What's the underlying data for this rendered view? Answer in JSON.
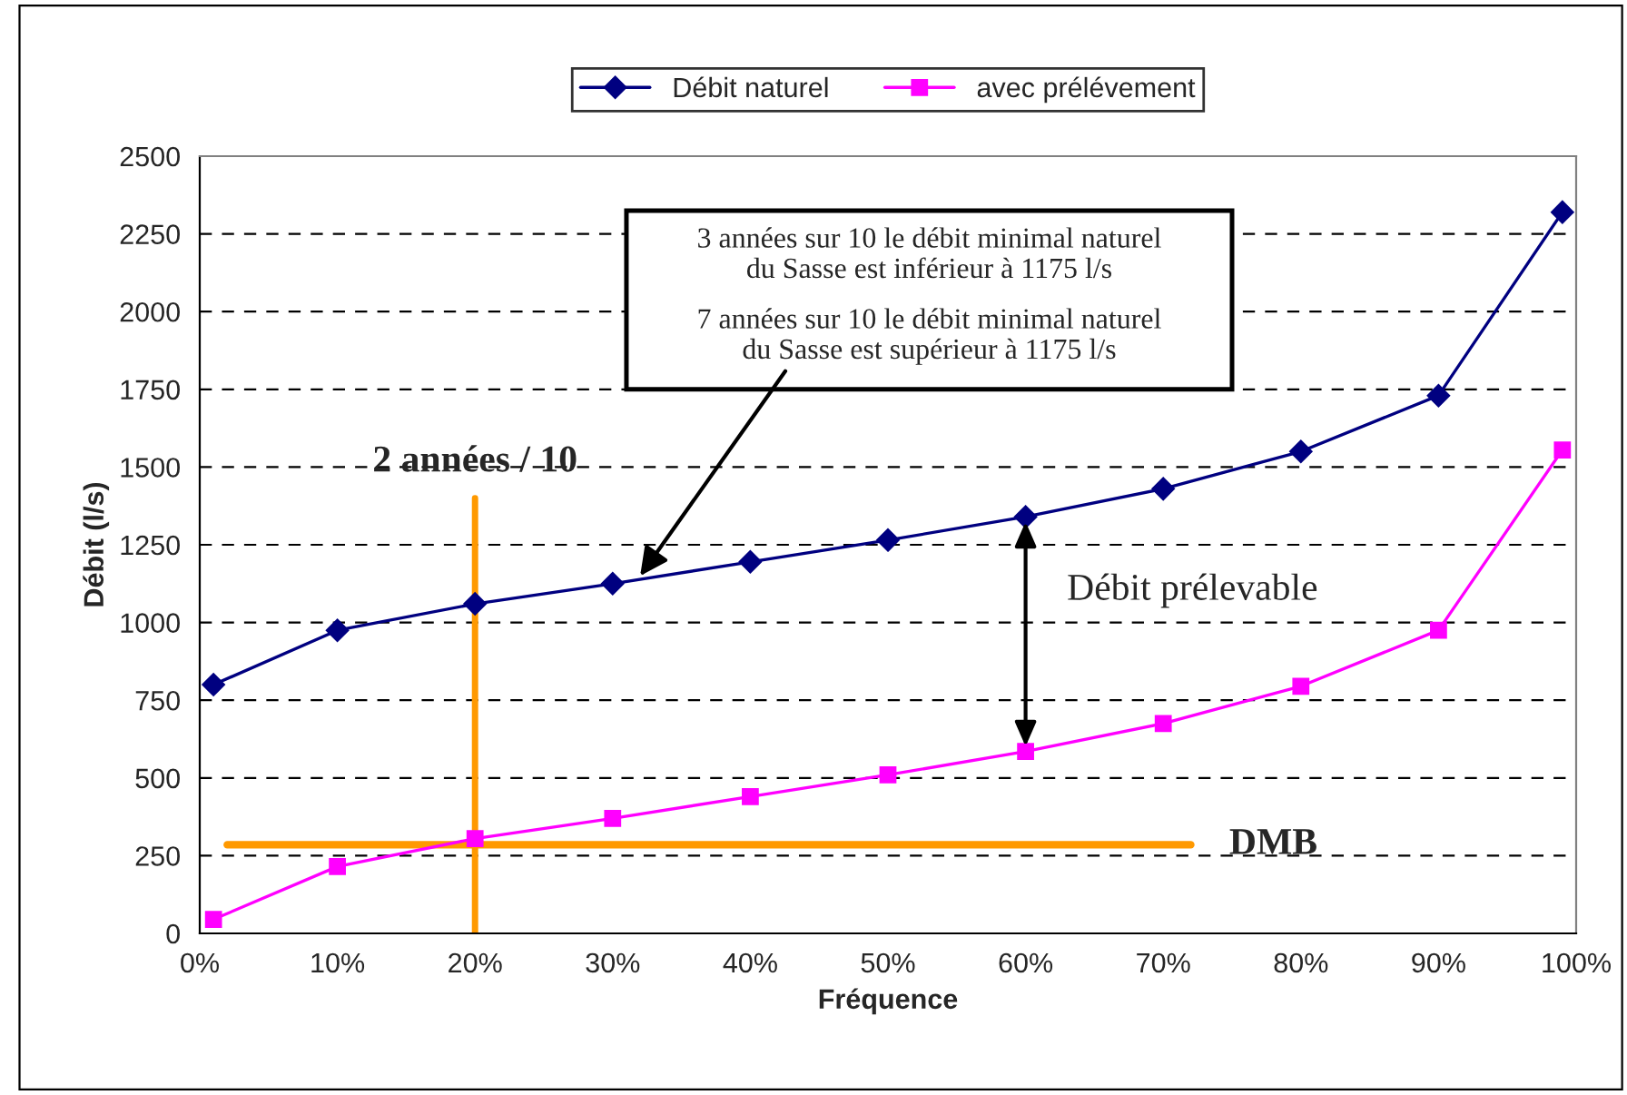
{
  "chart_data": {
    "type": "line",
    "xlabel": "Fréquence",
    "ylabel": "Débit (l/s)",
    "x": [
      1,
      10,
      20,
      30,
      40,
      50,
      60,
      70,
      80,
      90,
      99
    ],
    "series": [
      {
        "name": "Débit naturel",
        "color": "#000080",
        "marker": "diamond",
        "values": [
          800,
          975,
          1060,
          1125,
          1195,
          1265,
          1340,
          1430,
          1550,
          1730,
          2320
        ]
      },
      {
        "name": "avec prélévement",
        "color": "#ff00ff",
        "marker": "square",
        "values": [
          45,
          215,
          305,
          370,
          440,
          510,
          585,
          675,
          795,
          975,
          1555
        ]
      }
    ],
    "xlim": [
      0,
      100
    ],
    "ylim": [
      0,
      2500
    ],
    "xticks": [
      {
        "value": 0,
        "label": "0%"
      },
      {
        "value": 10,
        "label": "10%"
      },
      {
        "value": 20,
        "label": "20%"
      },
      {
        "value": 30,
        "label": "30%"
      },
      {
        "value": 40,
        "label": "40%"
      },
      {
        "value": 50,
        "label": "50%"
      },
      {
        "value": 60,
        "label": "60%"
      },
      {
        "value": 70,
        "label": "70%"
      },
      {
        "value": 80,
        "label": "80%"
      },
      {
        "value": 90,
        "label": "90%"
      },
      {
        "value": 100,
        "label": "100%"
      }
    ],
    "yticks": [
      0,
      250,
      500,
      750,
      1000,
      1250,
      1500,
      1750,
      2000,
      2250,
      2500
    ],
    "grid": "y",
    "legend": "top",
    "line_style": "solid",
    "ref_lines": [
      {
        "axis": "x",
        "value": 20,
        "label": "2 années / 10",
        "color": "#ff9900"
      },
      {
        "axis": "y",
        "value": 285,
        "label": "DMB",
        "color": "#ff9900"
      }
    ],
    "annotations": [
      "3 années sur 10 le débit minimal naturel\ndu Sasse est inférieur à 1175 l/s",
      {
        "text": "7 années sur 10 le débit minimal naturel\ndu Sasse est supérieur à 1175 l/s",
        "x": 32,
        "y": 1150
      },
      {
        "text": "Débit prélevable",
        "x": 60,
        "y": 1340
      }
    ]
  }
}
